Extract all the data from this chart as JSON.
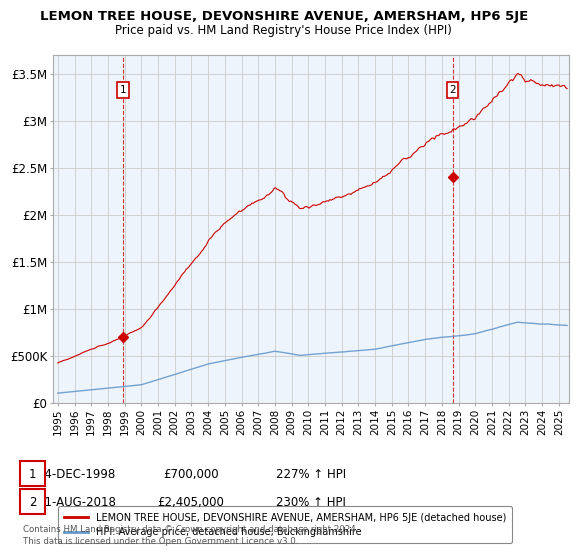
{
  "title": "LEMON TREE HOUSE, DEVONSHIRE AVENUE, AMERSHAM, HP6 5JE",
  "subtitle": "Price paid vs. HM Land Registry's House Price Index (HPI)",
  "ylabel_ticks": [
    "£0",
    "£500K",
    "£1M",
    "£1.5M",
    "£2M",
    "£2.5M",
    "£3M",
    "£3.5M"
  ],
  "ytick_values": [
    0,
    500000,
    1000000,
    1500000,
    2000000,
    2500000,
    3000000,
    3500000
  ],
  "ylim": [
    0,
    3700000
  ],
  "xlim": [
    1994.7,
    2025.6
  ],
  "sale1": {
    "date_num": 1998.92,
    "price": 700000,
    "label": "1"
  },
  "sale2": {
    "date_num": 2018.64,
    "price": 2405000,
    "label": "2"
  },
  "legend_line1": "LEMON TREE HOUSE, DEVONSHIRE AVENUE, AMERSHAM, HP6 5JE (detached house)",
  "legend_line2": "HPI: Average price, detached house, Buckinghamshire",
  "annotation1": [
    "1",
    "04-DEC-1998",
    "£700,000",
    "227% ↑ HPI"
  ],
  "annotation2": [
    "2",
    "21-AUG-2018",
    "£2,405,000",
    "230% ↑ HPI"
  ],
  "footer": "Contains HM Land Registry data © Crown copyright and database right 2024.\nThis data is licensed under the Open Government Licence v3.0.",
  "red_color": "#cc0000",
  "blue_color": "#6699cc",
  "plot_bg": "#eef4fb",
  "background": "#ffffff",
  "grid_color": "#cccccc"
}
